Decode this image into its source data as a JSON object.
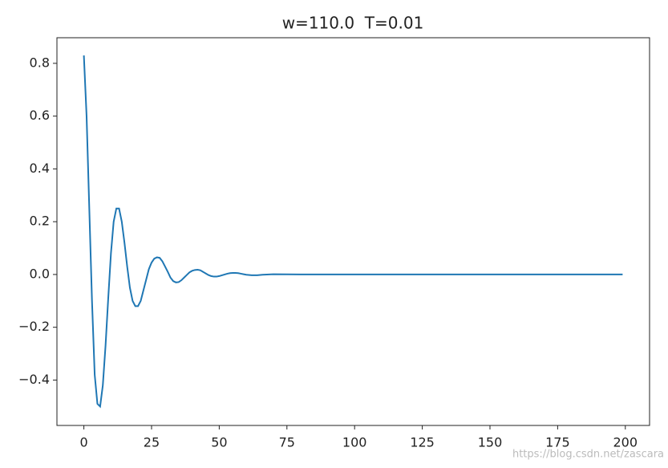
{
  "chart_data": {
    "type": "line",
    "title": "w=110.0  T=0.01",
    "x": [
      0,
      1,
      2,
      3,
      4,
      5,
      6,
      7,
      8,
      9,
      10,
      11,
      12,
      13,
      14,
      15,
      16,
      17,
      18,
      19,
      20,
      21,
      22,
      23,
      24,
      25,
      26,
      27,
      28,
      29,
      30,
      31,
      32,
      33,
      34,
      35,
      36,
      37,
      38,
      39,
      40,
      41,
      42,
      43,
      44,
      45,
      46,
      47,
      48,
      49,
      50,
      51,
      52,
      53,
      54,
      55,
      56,
      57,
      58,
      59,
      60,
      62,
      64,
      66,
      70,
      80,
      100,
      120,
      140,
      160,
      180,
      199
    ],
    "series": [
      {
        "color": "#1f77b4",
        "values": [
          0.83,
          0.6,
          0.25,
          -0.1,
          -0.38,
          -0.49,
          -0.5,
          -0.42,
          -0.27,
          -0.09,
          0.08,
          0.2,
          0.25,
          0.25,
          0.2,
          0.12,
          0.03,
          -0.05,
          -0.1,
          -0.12,
          -0.12,
          -0.1,
          -0.06,
          -0.02,
          0.02,
          0.045,
          0.06,
          0.065,
          0.063,
          0.05,
          0.03,
          0.01,
          -0.012,
          -0.025,
          -0.03,
          -0.029,
          -0.022,
          -0.012,
          -0.002,
          0.008,
          0.014,
          0.017,
          0.018,
          0.016,
          0.01,
          0.004,
          -0.002,
          -0.006,
          -0.008,
          -0.008,
          -0.006,
          -0.003,
          0,
          0.003,
          0.005,
          0.006,
          0.006,
          0.005,
          0.003,
          0.001,
          -0.001,
          -0.003,
          -0.003,
          -0.001,
          0.001,
          0,
          0,
          0,
          0,
          0,
          0,
          0
        ]
      }
    ],
    "xlim": [
      -9.95,
      208.95
    ],
    "xticks": [
      0,
      25,
      50,
      75,
      100,
      125,
      150,
      175,
      200
    ],
    "ylim": [
      -0.572,
      0.897
    ],
    "yticks": [
      {
        "value": -0.4,
        "label": "−0.4"
      },
      {
        "value": -0.2,
        "label": "−0.2"
      },
      {
        "value": 0,
        "label": "0.0"
      },
      0.2,
      0.4,
      0.6,
      0.8
    ],
    "watermark": "https://blog.csdn.net/zascara"
  }
}
